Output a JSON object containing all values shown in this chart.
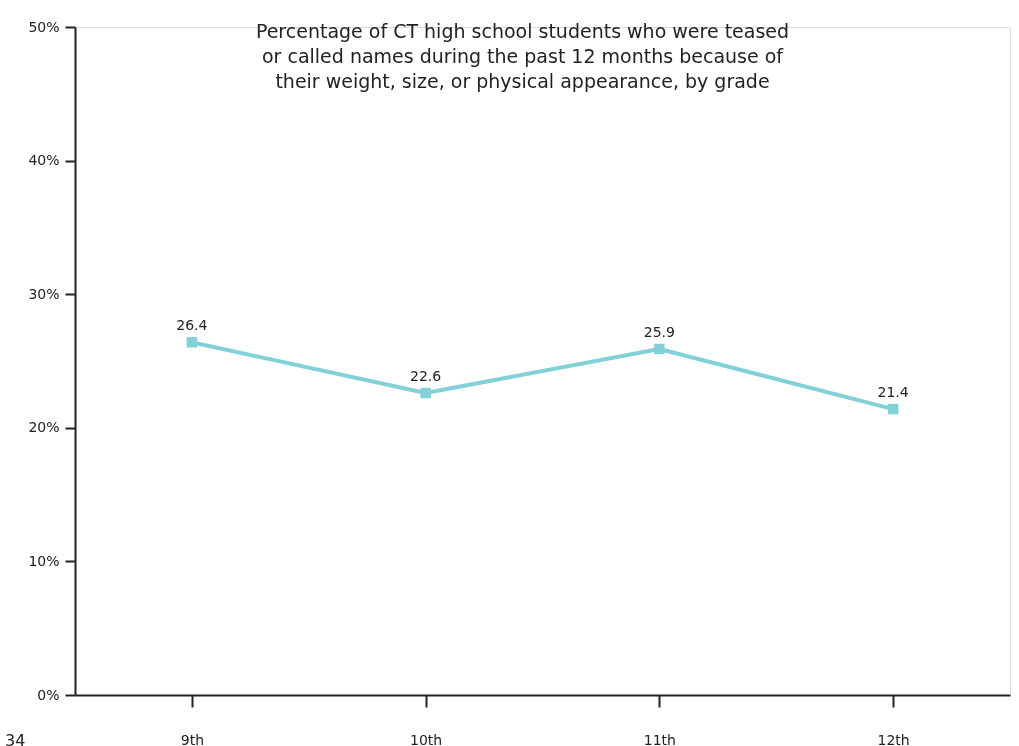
{
  "chart_data": {
    "type": "line",
    "title": "Percentage of CT high school students who were teased\nor called names during the past 12 months because of\ntheir weight, size, or physical appearance, by grade",
    "categories": [
      "9th",
      "10th",
      "11th",
      "12th"
    ],
    "series": [
      {
        "color": "#82d0d8",
        "values": [
          26.4,
          22.6,
          25.9,
          21.4
        ]
      }
    ],
    "ylim": [
      0,
      50
    ],
    "yticks": [
      {
        "value": 0,
        "label": "0%"
      },
      {
        "value": 10,
        "label": "10%"
      },
      {
        "value": 20,
        "label": "20%"
      },
      {
        "value": 30,
        "label": "30%"
      },
      {
        "value": 40,
        "label": "40%"
      },
      {
        "value": 50,
        "label": "50%"
      }
    ],
    "data_labels": true,
    "marker": "square",
    "line_style": "solid",
    "grid": false,
    "annotations": [
      "34"
    ]
  }
}
